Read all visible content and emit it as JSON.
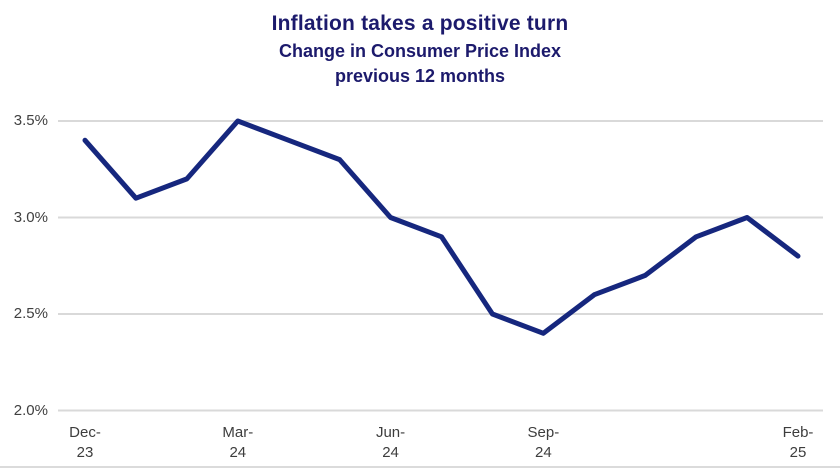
{
  "header": {
    "title": "Inflation takes a positive turn",
    "subtitle_line1": "Change in Consumer Price Index",
    "subtitle_line2": "previous 12 months"
  },
  "colors": {
    "title_text": "#1c1a6c",
    "series_line": "#16277e",
    "gridline": "#d9d9d9",
    "bottom_rule": "#cfcfcf",
    "axis_text": "#404040",
    "background": "#ffffff"
  },
  "chart_data": {
    "type": "line",
    "title": "Inflation takes a positive turn",
    "subtitle": "Change in Consumer Price Index previous 12 months",
    "x": [
      "Dec-23",
      "Jan-24",
      "Feb-24",
      "Mar-24",
      "Apr-24",
      "May-24",
      "Jun-24",
      "Jul-24",
      "Aug-24",
      "Sep-24",
      "Oct-24",
      "Nov-24",
      "Dec-24",
      "Jan-25",
      "Feb-25"
    ],
    "values": [
      3.4,
      3.1,
      3.2,
      3.5,
      3.4,
      3.3,
      3.0,
      2.9,
      2.5,
      2.4,
      2.6,
      2.7,
      2.9,
      3.0,
      2.8
    ],
    "unit": "%",
    "xlabel": "",
    "ylabel": "",
    "ylim": [
      2.0,
      3.5
    ],
    "ytick_values": [
      3.5,
      3.0,
      2.5,
      2.0
    ],
    "ytick_labels": [
      "3.5%",
      "3.0%",
      "2.5%",
      "2.0%"
    ],
    "xtick_indices": [
      0,
      3,
      6,
      9,
      14
    ],
    "xtick_labels": [
      [
        "Dec-",
        "23"
      ],
      [
        "Mar-",
        "24"
      ],
      [
        "Jun-",
        "24"
      ],
      [
        "Sep-",
        "24"
      ],
      [
        "Feb-",
        "25"
      ]
    ],
    "grid": true,
    "legend": false
  }
}
